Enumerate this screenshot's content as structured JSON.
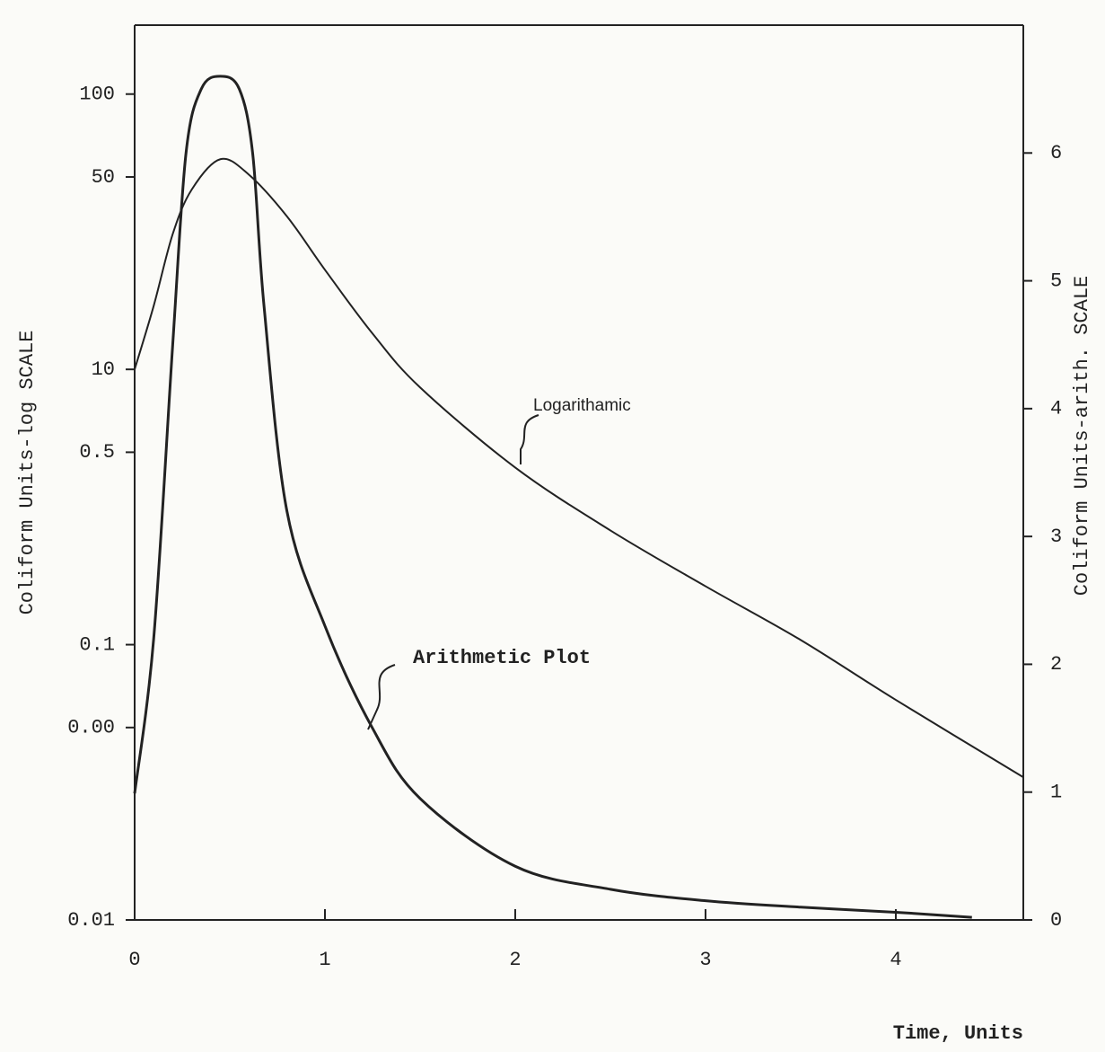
{
  "chart_data": {
    "type": "line",
    "y_label": "Coliform Units-log  SCALE",
    "y2_label": "Coliform Units-arith. SCALE",
    "x_label": "Time, Units",
    "annotations": [
      "Logarithamic",
      "Arithmetic Plot"
    ],
    "ylog": true,
    "xlim": [
      0,
      4.67
    ],
    "xticks": [
      0,
      1,
      2,
      3,
      4
    ],
    "ylim": [
      0.1,
      178
    ],
    "yticks": [
      100,
      50,
      10,
      {
        "value": 5,
        "label": "0.5"
      },
      {
        "value": 1,
        "label": "0.1"
      },
      {
        "value": 0.5,
        "label": "0.00"
      },
      {
        "value": 0.1,
        "label": "0.01"
      }
    ],
    "y2lim": [
      0,
      7
    ],
    "y2ticks": [
      0,
      1,
      2,
      3,
      4,
      5,
      6
    ],
    "series": [
      {
        "name": "Logarithamic",
        "color": "#222222",
        "x": [
          0,
          0.1,
          0.2,
          0.3,
          0.45,
          0.6,
          0.8,
          1.0,
          1.25,
          1.5,
          2.0,
          2.5,
          3.0,
          3.5,
          4.0,
          4.67
        ],
        "values": [
          10,
          17,
          31,
          45,
          58,
          51,
          36,
          23,
          13.5,
          8.6,
          4.4,
          2.6,
          1.63,
          1.04,
          0.63,
          0.33
        ]
      },
      {
        "name": "Arithmetic Plot",
        "color": "#222222",
        "axis": "y2",
        "x": [
          0,
          0.1,
          0.2,
          0.27,
          0.35,
          0.45,
          0.55,
          0.62,
          0.68,
          0.8,
          1.0,
          1.25,
          1.5,
          2.0,
          2.5,
          3.0,
          3.5,
          4.0,
          4.4
        ],
        "values": [
          0.99,
          2.2,
          4.5,
          6.0,
          6.5,
          6.6,
          6.5,
          6.0,
          4.8,
          3.2,
          2.3,
          1.5,
          0.95,
          0.42,
          0.24,
          0.15,
          0.1,
          0.06,
          0.02
        ]
      }
    ]
  }
}
